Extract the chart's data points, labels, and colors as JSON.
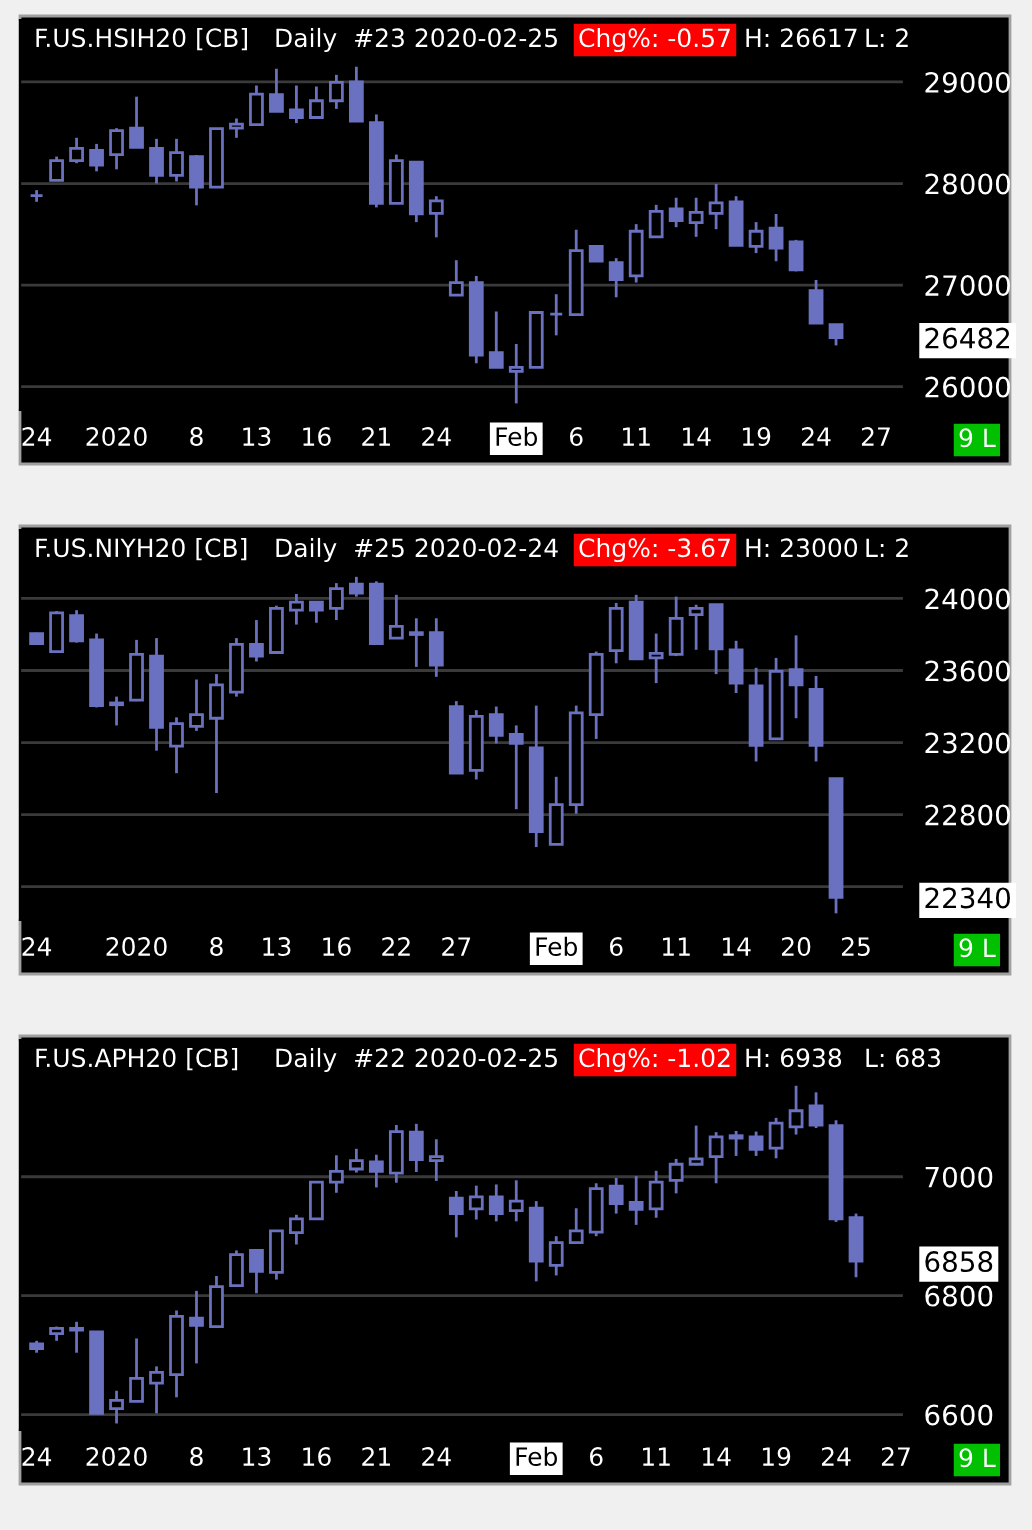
{
  "chart_data": [
    {
      "type": "candlestick",
      "title": "F.US.HSIH20 [CB]",
      "subtitle": "Daily  #23 2020-02-25",
      "annotations": [
        "Chg%: -0.57",
        "H: 26617",
        "L: 2",
        "9 L"
      ],
      "categories": [
        "24",
        null,
        null,
        null,
        "2020",
        null,
        null,
        null,
        "8",
        null,
        null,
        "13",
        null,
        null,
        "16",
        null,
        null,
        "21",
        null,
        null,
        "24",
        null,
        null,
        null,
        "Feb",
        null,
        null,
        "6",
        null,
        null,
        "11",
        null,
        null,
        "14",
        null,
        null,
        "19",
        null,
        null,
        "24",
        null,
        null,
        "27",
        null
      ],
      "color": "#6a71c1",
      "ohlc": [
        [
          27880,
          27935,
          27820,
          27880
        ],
        [
          28030,
          28265,
          28030,
          28225
        ],
        [
          28225,
          28450,
          28200,
          28345
        ],
        [
          28325,
          28390,
          28120,
          28180
        ],
        [
          28285,
          28545,
          28140,
          28520
        ],
        [
          28545,
          28855,
          28355,
          28355
        ],
        [
          28345,
          28440,
          28000,
          28080
        ],
        [
          28080,
          28440,
          28020,
          28305
        ],
        [
          28265,
          28280,
          27785,
          27965
        ],
        [
          27965,
          28540,
          27965,
          28540
        ],
        [
          28545,
          28640,
          28450,
          28585
        ],
        [
          28580,
          28965,
          28580,
          28880
        ],
        [
          28875,
          29130,
          28710,
          28710
        ],
        [
          28725,
          28965,
          28595,
          28650
        ],
        [
          28650,
          28955,
          28650,
          28815
        ],
        [
          28815,
          29070,
          28735,
          28995
        ],
        [
          29000,
          29150,
          28615,
          28615
        ],
        [
          28600,
          28680,
          27765,
          27805
        ],
        [
          27805,
          28285,
          27805,
          28225
        ],
        [
          28210,
          28210,
          27620,
          27700
        ],
        [
          27705,
          27875,
          27470,
          27830
        ],
        [
          26900,
          27245,
          26900,
          27025
        ],
        [
          27025,
          27090,
          26230,
          26310
        ],
        [
          26335,
          26740,
          26190,
          26190
        ],
        [
          26150,
          26420,
          25835,
          26190
        ],
        [
          26190,
          26730,
          26190,
          26730
        ],
        [
          26715,
          26910,
          26505,
          26715
        ],
        [
          26710,
          27545,
          26710,
          27340
        ],
        [
          27380,
          27380,
          27235,
          27235
        ],
        [
          27220,
          27265,
          26880,
          27055
        ],
        [
          27090,
          27600,
          27025,
          27530
        ],
        [
          27475,
          27790,
          27475,
          27725
        ],
        [
          27750,
          27860,
          27570,
          27635
        ],
        [
          27615,
          27860,
          27475,
          27715
        ],
        [
          27705,
          27995,
          27550,
          27810
        ],
        [
          27820,
          27875,
          27390,
          27390
        ],
        [
          27380,
          27620,
          27315,
          27530
        ],
        [
          27560,
          27700,
          27235,
          27365
        ],
        [
          27425,
          27445,
          27135,
          27150
        ],
        [
          26945,
          27050,
          26625,
          26625
        ],
        [
          26610,
          26617,
          26406,
          26482
        ],
        null,
        null,
        null
      ],
      "ylim": [
        25770,
        29610
      ],
      "yticks": [
        26000,
        26482,
        27000,
        28000,
        29000
      ],
      "grid": "y"
    },
    {
      "type": "candlestick",
      "title": "F.US.NIYH20 [CB]",
      "subtitle": "Daily  #25 2020-02-24",
      "annotations": [
        "Chg%: -3.67",
        "H: 23000",
        "L: 2",
        "9 L"
      ],
      "categories": [
        "24",
        null,
        null,
        null,
        null,
        "2020",
        null,
        null,
        null,
        "8",
        null,
        null,
        "13",
        null,
        null,
        "16",
        null,
        null,
        "22",
        null,
        null,
        "27",
        null,
        null,
        null,
        null,
        "Feb",
        null,
        null,
        "6",
        null,
        null,
        "11",
        null,
        null,
        "14",
        null,
        null,
        "20",
        null,
        null,
        "25",
        null,
        null
      ],
      "color": "#6a71c1",
      "ohlc": [
        [
          23805,
          23810,
          23745,
          23750
        ],
        [
          23705,
          23930,
          23705,
          23920
        ],
        [
          23905,
          23935,
          23755,
          23765
        ],
        [
          23770,
          23805,
          23395,
          23405
        ],
        [
          23420,
          23455,
          23295,
          23410
        ],
        [
          23435,
          23770,
          23430,
          23690
        ],
        [
          23680,
          23780,
          23155,
          23285
        ],
        [
          23180,
          23340,
          23030,
          23305
        ],
        [
          23290,
          23550,
          23265,
          23355
        ],
        [
          23335,
          23580,
          22920,
          23520
        ],
        [
          23480,
          23780,
          23455,
          23745
        ],
        [
          23745,
          23880,
          23650,
          23680
        ],
        [
          23700,
          23960,
          23700,
          23945
        ],
        [
          23935,
          24025,
          23855,
          23980
        ],
        [
          23980,
          23980,
          23865,
          23935
        ],
        [
          23945,
          24085,
          23880,
          24055
        ],
        [
          24080,
          24120,
          24010,
          24030
        ],
        [
          24080,
          24095,
          23750,
          23750
        ],
        [
          23780,
          24020,
          23780,
          23845
        ],
        [
          23810,
          23890,
          23620,
          23800
        ],
        [
          23810,
          23890,
          23565,
          23630
        ],
        [
          23400,
          23430,
          23030,
          23030
        ],
        [
          23045,
          23380,
          22995,
          23345
        ],
        [
          23355,
          23400,
          23195,
          23240
        ],
        [
          23245,
          23295,
          22830,
          23195
        ],
        [
          23170,
          23405,
          22620,
          22705
        ],
        [
          22635,
          23010,
          22635,
          22855
        ],
        [
          22855,
          23405,
          22805,
          23365
        ],
        [
          23355,
          23705,
          23220,
          23690
        ],
        [
          23710,
          23975,
          23640,
          23945
        ],
        [
          23980,
          24020,
          23665,
          23665
        ],
        [
          23670,
          23805,
          23530,
          23695
        ],
        [
          23690,
          24010,
          23680,
          23890
        ],
        [
          23910,
          23965,
          23715,
          23945
        ],
        [
          23965,
          23965,
          23580,
          23720
        ],
        [
          23715,
          23765,
          23475,
          23530
        ],
        [
          23515,
          23615,
          23095,
          23185
        ],
        [
          23220,
          23670,
          23220,
          23595
        ],
        [
          23605,
          23795,
          23335,
          23520
        ],
        [
          23495,
          23570,
          23095,
          23185
        ],
        [
          23000,
          23000,
          22252,
          22340
        ],
        null,
        null,
        null
      ],
      "ylim": [
        22215,
        24380
      ],
      "yticks": [
        22340,
        {
          "value": 22400,
          "label": null
        },
        22800,
        23200,
        23600,
        24000
      ],
      "grid": "y"
    },
    {
      "type": "candlestick",
      "title": "F.US.APH20 [CB]",
      "subtitle": "Daily  #22 2020-02-25",
      "annotations": [
        "Chg%: -1.02",
        "H: 6938",
        "L: 683",
        "9 L"
      ],
      "categories": [
        "24",
        null,
        null,
        null,
        "2020",
        null,
        null,
        null,
        "8",
        null,
        null,
        "13",
        null,
        null,
        "16",
        null,
        null,
        "21",
        null,
        null,
        "24",
        null,
        null,
        null,
        null,
        "Feb",
        null,
        null,
        "6",
        null,
        null,
        "11",
        null,
        null,
        "14",
        null,
        null,
        "19",
        null,
        null,
        "24",
        null,
        null,
        "27"
      ],
      "color": "#6a71c1",
      "ohlc": [
        [
          6719,
          6724,
          6704,
          6711
        ],
        [
          6736,
          6748,
          6724,
          6745
        ],
        [
          6742,
          6756,
          6704,
          6745
        ],
        [
          6739,
          6739,
          6602,
          6602
        ],
        [
          6610,
          6640,
          6585,
          6624
        ],
        [
          6622,
          6728,
          6622,
          6661
        ],
        [
          6653,
          6681,
          6602,
          6671
        ],
        [
          6667,
          6775,
          6629,
          6765
        ],
        [
          6762,
          6808,
          6686,
          6750
        ],
        [
          6748,
          6833,
          6748,
          6815
        ],
        [
          6817,
          6876,
          6815,
          6869
        ],
        [
          6876,
          6876,
          6804,
          6841
        ],
        [
          6839,
          6909,
          6827,
          6909
        ],
        [
          6906,
          6936,
          6886,
          6929
        ],
        [
          6929,
          6991,
          6929,
          6991
        ],
        [
          6991,
          7036,
          6973,
          7009
        ],
        [
          7013,
          7047,
          7007,
          7027
        ],
        [
          7025,
          7037,
          6982,
          7009
        ],
        [
          7006,
          7087,
          6990,
          7076
        ],
        [
          7075,
          7089,
          7008,
          7029
        ],
        [
          7027,
          7063,
          6993,
          7034
        ],
        [
          6964,
          6976,
          6898,
          6938
        ],
        [
          6946,
          6985,
          6928,
          6966
        ],
        [
          6966,
          6987,
          6925,
          6938
        ],
        [
          6943,
          6994,
          6925,
          6959
        ],
        [
          6947,
          6959,
          6824,
          6858
        ],
        [
          6851,
          6900,
          6834,
          6889
        ],
        [
          6889,
          6947,
          6889,
          6909
        ],
        [
          6907,
          6989,
          6900,
          6980
        ],
        [
          6984,
          6998,
          6938,
          6955
        ],
        [
          6957,
          7001,
          6919,
          6945
        ],
        [
          6946,
          7010,
          6931,
          6991
        ],
        [
          6994,
          7030,
          6972,
          7021
        ],
        [
          7021,
          7086,
          7019,
          7030
        ],
        [
          7034,
          7075,
          6989,
          7067
        ],
        [
          7069,
          7077,
          7035,
          7065
        ],
        [
          7067,
          7076,
          7035,
          7046
        ],
        [
          7048,
          7099,
          7031,
          7090
        ],
        [
          7084,
          7153,
          7071,
          7111
        ],
        [
          7119,
          7142,
          7082,
          7087
        ],
        [
          7086,
          7095,
          6924,
          6929
        ],
        [
          6931,
          6938,
          6831,
          6858
        ],
        null,
        null
      ],
      "ylim": [
        6574,
        7230
      ],
      "yticks": [
        6600,
        6800,
        6858,
        7000
      ],
      "grid": "y"
    }
  ]
}
